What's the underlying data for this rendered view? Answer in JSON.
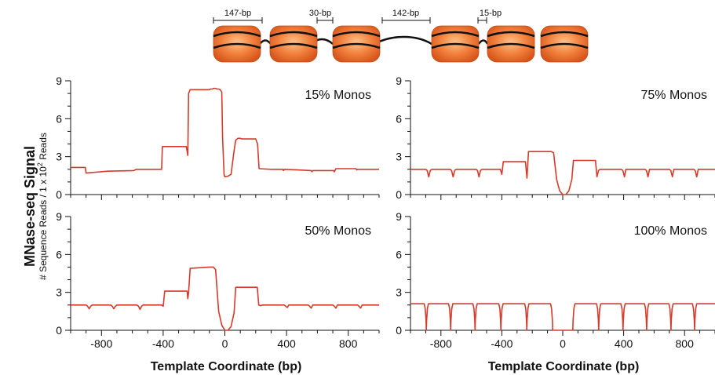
{
  "diagram": {
    "spacings": [
      {
        "label": "147-bp"
      },
      {
        "label": "30-bp"
      },
      {
        "label": "142-bp"
      },
      {
        "label": "15-bp"
      }
    ],
    "colors": {
      "nucleosome": "#f07b3a",
      "dna": "#111111"
    }
  },
  "y_title": {
    "main": "MNase-seq Signal",
    "sub_prefix": "# Sequence Reads / 1 x 10",
    "sub_exp": "2",
    "sub_suffix": " Reads"
  },
  "chart_data": [
    {
      "type": "line",
      "title": "15% Monos",
      "xlabel": "Template Coordinate (bp)",
      "ylabel": "",
      "xlim": [
        -1000,
        1000
      ],
      "ylim": [
        0,
        9
      ],
      "yticks": [
        0,
        3,
        6,
        9
      ],
      "xticks": [],
      "color": "#d63a2a",
      "x": [
        -1000,
        -905,
        -900,
        -760,
        -590,
        -575,
        -410,
        -405,
        -250,
        -240,
        -235,
        -225,
        -100,
        -95,
        -80,
        -75,
        -60,
        -50,
        -40,
        -30,
        -20,
        -15,
        -5,
        0,
        20,
        40,
        60,
        70,
        80,
        85,
        100,
        110,
        200,
        212,
        222,
        300,
        375,
        380,
        385,
        560,
        565,
        570,
        705,
        710,
        720,
        850,
        855,
        860,
        1000
      ],
      "y": [
        2.15,
        2.15,
        1.7,
        1.85,
        1.9,
        2.0,
        2.0,
        3.8,
        3.8,
        3.1,
        8.0,
        8.3,
        8.3,
        8.35,
        8.35,
        8.4,
        8.4,
        8.35,
        8.35,
        8.3,
        8.1,
        4.5,
        1.6,
        1.4,
        1.45,
        1.6,
        3.5,
        4.3,
        4.4,
        4.45,
        4.45,
        4.4,
        4.4,
        4.0,
        2.05,
        2.0,
        2.0,
        1.9,
        2.0,
        1.9,
        1.8,
        1.9,
        1.9,
        1.8,
        2.05,
        2.05,
        1.95,
        2.0,
        2.0
      ]
    },
    {
      "type": "line",
      "title": "75% Monos",
      "xlabel": "Template Coordinate (bp)",
      "ylabel": "",
      "xlim": [
        -1000,
        1000
      ],
      "ylim": [
        0,
        9
      ],
      "yticks": [
        0,
        3,
        6,
        9
      ],
      "xticks": [],
      "color": "#d63a2a",
      "x": [
        -1000,
        -900,
        -890,
        -880,
        -870,
        -860,
        -740,
        -730,
        -720,
        -710,
        -700,
        -570,
        -560,
        -550,
        -540,
        -530,
        -410,
        -400,
        -390,
        -245,
        -235,
        -225,
        -215,
        -90,
        -75,
        -60,
        -40,
        -20,
        0,
        20,
        40,
        60,
        70,
        80,
        90,
        215,
        225,
        235,
        245,
        385,
        395,
        405,
        415,
        540,
        550,
        560,
        570,
        700,
        710,
        720,
        730,
        860,
        870,
        880,
        890,
        1000
      ],
      "y": [
        2.0,
        2.0,
        1.9,
        1.4,
        1.9,
        2.0,
        2.0,
        1.9,
        1.4,
        1.9,
        2.0,
        2.0,
        1.9,
        1.4,
        1.9,
        2.0,
        2.0,
        1.6,
        2.6,
        2.6,
        1.3,
        3.4,
        3.4,
        3.4,
        3.4,
        3.3,
        1.2,
        0.3,
        0.0,
        0.0,
        0.3,
        1.2,
        2.7,
        2.7,
        2.7,
        2.7,
        1.4,
        1.9,
        2.0,
        2.0,
        1.9,
        1.4,
        2.0,
        2.0,
        1.9,
        1.4,
        2.0,
        2.0,
        1.9,
        1.4,
        2.0,
        2.0,
        1.9,
        1.4,
        2.0,
        2.0
      ]
    },
    {
      "type": "line",
      "title": "50% Monos",
      "xlabel": "Template Coordinate (bp)",
      "ylabel": "",
      "xlim": [
        -1000,
        1000
      ],
      "ylim": [
        0,
        9
      ],
      "yticks": [
        0,
        3,
        6,
        9
      ],
      "xticks": [
        -800,
        -400,
        0,
        400,
        800
      ],
      "color": "#d63a2a",
      "x": [
        -1000,
        -900,
        -890,
        -880,
        -870,
        -860,
        -740,
        -730,
        -720,
        -710,
        -700,
        -570,
        -560,
        -550,
        -540,
        -530,
        -410,
        -400,
        -390,
        -245,
        -240,
        -235,
        -225,
        -100,
        -75,
        -60,
        -40,
        -20,
        0,
        20,
        40,
        60,
        70,
        80,
        90,
        210,
        220,
        230,
        245,
        385,
        395,
        405,
        415,
        540,
        550,
        560,
        570,
        700,
        710,
        720,
        730,
        860,
        870,
        880,
        890,
        1000
      ],
      "y": [
        2.0,
        2.0,
        1.9,
        1.7,
        1.9,
        2.0,
        2.0,
        1.9,
        1.7,
        1.9,
        2.0,
        2.0,
        1.9,
        1.65,
        1.9,
        2.0,
        2.0,
        1.9,
        3.1,
        3.1,
        2.5,
        3.0,
        4.9,
        5.0,
        5.0,
        4.8,
        1.5,
        0.4,
        0.0,
        0.0,
        0.3,
        1.4,
        3.4,
        3.4,
        3.4,
        3.4,
        2.0,
        1.95,
        2.0,
        2.0,
        1.9,
        1.8,
        2.0,
        2.0,
        1.9,
        1.75,
        2.0,
        2.0,
        1.9,
        1.75,
        2.0,
        2.0,
        1.9,
        1.75,
        2.0,
        2.0
      ]
    },
    {
      "type": "line",
      "title": "100% Monos",
      "xlabel": "Template Coordinate (bp)",
      "ylabel": "",
      "xlim": [
        -1000,
        1000
      ],
      "ylim": [
        0,
        9
      ],
      "yticks": [
        0,
        3,
        6,
        9
      ],
      "xticks": [
        -800,
        -400,
        0,
        400,
        800
      ],
      "color": "#d63a2a",
      "x": [
        -1000,
        -910,
        -903,
        -898,
        -896,
        -894,
        -889,
        -882,
        -750,
        -743,
        -738,
        -736,
        -734,
        -729,
        -722,
        -590,
        -583,
        -578,
        -576,
        -574,
        -569,
        -562,
        -420,
        -413,
        -408,
        -406,
        -404,
        -399,
        -392,
        -250,
        -243,
        -238,
        -236,
        -234,
        -229,
        -222,
        -80,
        -73,
        -68,
        -66,
        -64,
        64,
        66,
        68,
        73,
        80,
        222,
        229,
        234,
        236,
        238,
        243,
        250,
        382,
        389,
        394,
        396,
        398,
        403,
        410,
        537,
        544,
        549,
        551,
        553,
        558,
        565,
        697,
        704,
        709,
        711,
        713,
        718,
        725,
        852,
        859,
        864,
        866,
        868,
        873,
        880,
        1000
      ],
      "y": [
        2.1,
        2.1,
        1.7,
        0.8,
        0.0,
        0.8,
        1.7,
        2.1,
        2.1,
        1.7,
        0.8,
        0.0,
        0.8,
        1.7,
        2.1,
        2.1,
        1.7,
        0.8,
        0.0,
        0.8,
        1.7,
        2.1,
        2.1,
        1.7,
        0.8,
        0.0,
        0.8,
        1.7,
        2.1,
        2.1,
        1.7,
        0.8,
        0.0,
        0.8,
        1.7,
        2.1,
        2.1,
        1.7,
        0.8,
        0.0,
        0.0,
        0.0,
        0.0,
        0.8,
        1.7,
        2.1,
        2.1,
        1.7,
        0.8,
        0.0,
        0.8,
        1.7,
        2.1,
        2.1,
        1.7,
        0.8,
        0.0,
        0.8,
        1.7,
        2.1,
        2.1,
        1.7,
        0.8,
        0.0,
        0.8,
        1.7,
        2.1,
        2.1,
        1.7,
        0.8,
        0.0,
        0.8,
        1.7,
        2.1,
        2.1,
        1.7,
        0.8,
        0.0,
        0.8,
        1.7,
        2.1,
        2.1
      ]
    }
  ]
}
